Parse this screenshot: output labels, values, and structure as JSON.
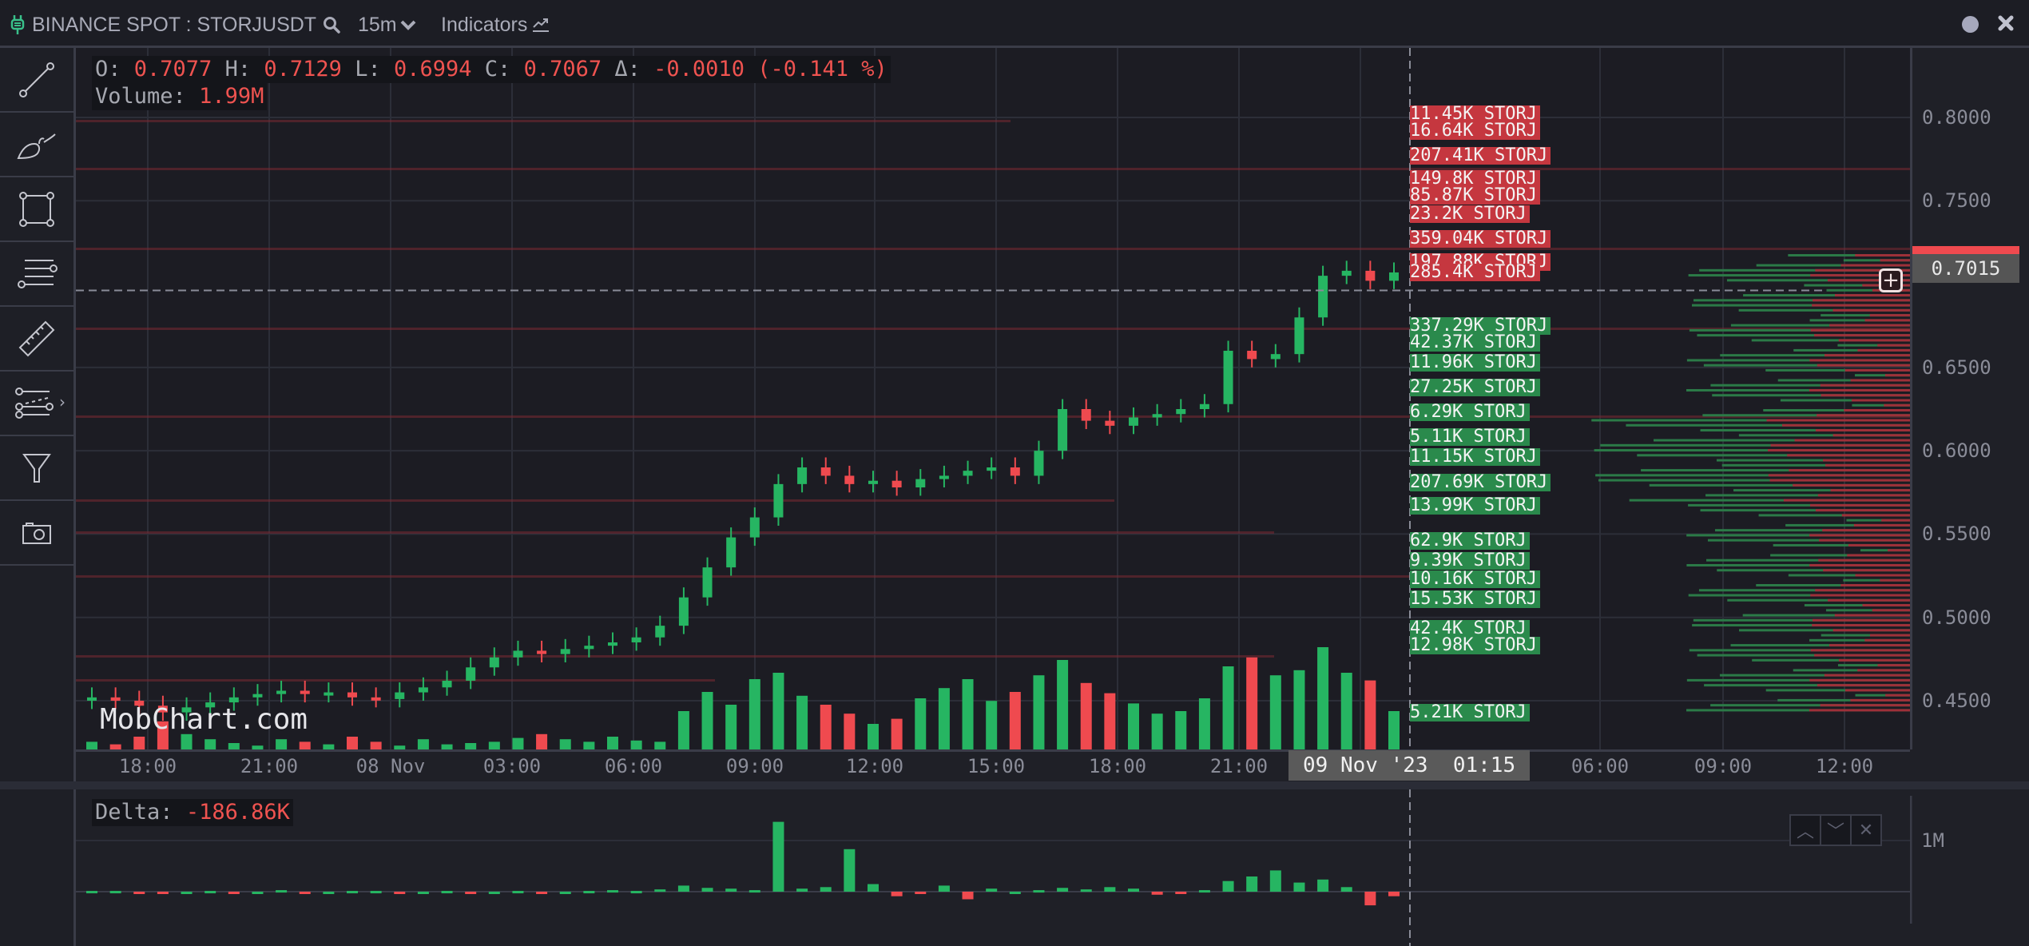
{
  "header": {
    "symbol": "BINANCE SPOT : STORJUSDT",
    "timeframe": "15m",
    "indicators_label": "Indicators",
    "icons": [
      "plug-icon",
      "search-icon",
      "chevron-down-icon",
      "chart-trend-icon",
      "status-dot-icon",
      "close-icon"
    ]
  },
  "toolbar": {
    "tools": [
      {
        "name": "trend-line-tool",
        "icon": "line-icon"
      },
      {
        "name": "brush-tool",
        "icon": "brush-icon"
      },
      {
        "name": "rectangle-tool",
        "icon": "rectangle-icon"
      },
      {
        "name": "horizontal-lines-tool",
        "icon": "lines-icon"
      },
      {
        "name": "ruler-tool",
        "icon": "ruler-icon"
      },
      {
        "name": "fib-tool",
        "icon": "fib-lines-icon",
        "has_submenu": true
      },
      {
        "name": "filter-tool",
        "icon": "filter-icon"
      },
      {
        "name": "screenshot-tool",
        "icon": "camera-icon"
      }
    ]
  },
  "legend": {
    "o_label": "O:",
    "o": "0.7077",
    "h_label": "H:",
    "h": "0.7129",
    "l_label": "L:",
    "l": "0.6994",
    "c_label": "C:",
    "c": "0.7067",
    "d_label": "Δ:",
    "d": "-0.0010 (-0.141 %)",
    "volume_label": "Volume:",
    "volume": "1.99M"
  },
  "watermark": "MobChart.com",
  "current_price": "0.7015",
  "crosshair_time": "09 Nov '23  01:15",
  "delta_pane": {
    "label": "Delta:",
    "value": "-186.86K",
    "axis_label": "1M",
    "buttons": [
      "move-up",
      "move-down",
      "close"
    ]
  },
  "colors": {
    "up": "#26b562",
    "down": "#ef4a4f",
    "ask_badge": "#c5373f",
    "bid_badge": "#2a8a4c",
    "background": "#1c1c23"
  },
  "chart_data": {
    "type": "candlestick",
    "title": "BINANCE SPOT : STORJUSDT 15m",
    "price_axis": {
      "ticks": [
        "0.8000",
        "0.7500",
        "0.6500",
        "0.6000",
        "0.5500",
        "0.5000",
        "0.4500"
      ],
      "range": [
        0.422,
        0.835
      ]
    },
    "time_axis": {
      "ticks": [
        "18:00",
        "21:00",
        "08 Nov",
        "03:00",
        "06:00",
        "09:00",
        "12:00",
        "15:00",
        "18:00",
        "21:00",
        "09 Nov '23",
        "01:15",
        "06:00",
        "09:00",
        "12:00"
      ]
    },
    "ohlc_last": {
      "open": 0.7077,
      "high": 0.7129,
      "low": 0.6994,
      "close": 0.7067,
      "change": -0.001,
      "change_pct": -0.141
    },
    "volume_last": "1.99M",
    "orderbook_ask_levels": [
      {
        "price": 0.802,
        "size": "11.45K STORJ"
      },
      {
        "price": 0.792,
        "size": "16.64K STORJ"
      },
      {
        "price": 0.777,
        "size": "207.41K STORJ"
      },
      {
        "price": 0.763,
        "size": "149.8K STORJ"
      },
      {
        "price": 0.753,
        "size": "85.87K STORJ"
      },
      {
        "price": 0.742,
        "size": "23.2K STORJ"
      },
      {
        "price": 0.727,
        "size": "359.04K STORJ"
      },
      {
        "price": 0.713,
        "size": "197.88K STORJ"
      },
      {
        "price": 0.707,
        "size": "285.4K STORJ"
      }
    ],
    "orderbook_bid_levels": [
      {
        "price": 0.675,
        "size": "337.29K STORJ"
      },
      {
        "price": 0.665,
        "size": "42.37K STORJ"
      },
      {
        "price": 0.653,
        "size": "11.96K STORJ"
      },
      {
        "price": 0.638,
        "size": "27.25K STORJ"
      },
      {
        "price": 0.623,
        "size": "6.29K STORJ"
      },
      {
        "price": 0.608,
        "size": "5.11K STORJ"
      },
      {
        "price": 0.596,
        "size": "11.15K STORJ"
      },
      {
        "price": 0.581,
        "size": "207.69K STORJ"
      },
      {
        "price": 0.567,
        "size": "13.99K STORJ"
      },
      {
        "price": 0.546,
        "size": "62.9K STORJ"
      },
      {
        "price": 0.534,
        "size": "9.39K STORJ"
      },
      {
        "price": 0.523,
        "size": "10.16K STORJ"
      },
      {
        "price": 0.511,
        "size": "15.53K STORJ"
      },
      {
        "price": 0.493,
        "size": "42.4K STORJ"
      },
      {
        "price": 0.483,
        "size": "12.98K STORJ"
      },
      {
        "price": 0.443,
        "size": "5.21K STORJ"
      }
    ],
    "price_path_close": [
      0.452,
      0.45,
      0.447,
      0.443,
      0.446,
      0.449,
      0.452,
      0.454,
      0.456,
      0.454,
      0.455,
      0.452,
      0.451,
      0.455,
      0.458,
      0.462,
      0.47,
      0.476,
      0.48,
      0.478,
      0.481,
      0.483,
      0.485,
      0.488,
      0.495,
      0.512,
      0.53,
      0.548,
      0.56,
      0.58,
      0.59,
      0.585,
      0.58,
      0.582,
      0.578,
      0.583,
      0.585,
      0.588,
      0.59,
      0.585,
      0.6,
      0.625,
      0.618,
      0.615,
      0.62,
      0.622,
      0.625,
      0.628,
      0.66,
      0.655,
      0.658,
      0.68,
      0.705,
      0.708,
      0.702,
      0.707
    ],
    "delta_last": "-186.86K",
    "delta_axis": [
      "1M"
    ]
  }
}
